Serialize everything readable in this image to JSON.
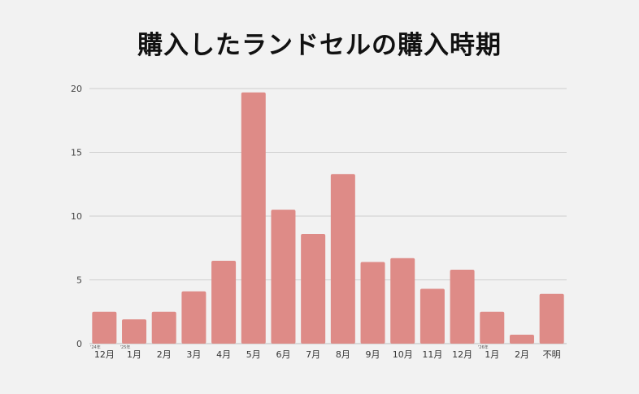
{
  "chart_data": {
    "type": "bar",
    "title": "購入したランドセルの購入時期",
    "categories": [
      "12月",
      "1月",
      "2月",
      "3月",
      "4月",
      "5月",
      "6月",
      "7月",
      "8月",
      "9月",
      "10月",
      "11月",
      "12月",
      "1月",
      "2月",
      "不明"
    ],
    "category_notes": [
      "'24年",
      "'25年",
      "",
      "",
      "",
      "",
      "",
      "",
      "",
      "",
      "",
      "",
      "",
      "'26年",
      "",
      ""
    ],
    "values": [
      2.5,
      1.9,
      2.5,
      4.1,
      6.5,
      19.7,
      10.5,
      8.6,
      13.3,
      6.4,
      6.7,
      4.3,
      5.8,
      2.5,
      0.7,
      3.9
    ],
    "yticks": [
      0,
      5,
      10,
      15,
      20
    ],
    "ylim": [
      0,
      20
    ],
    "xlabel": "",
    "ylabel": "",
    "grid": true,
    "bar_color": "#de8b87",
    "grid_color": "#cfcfcf"
  }
}
